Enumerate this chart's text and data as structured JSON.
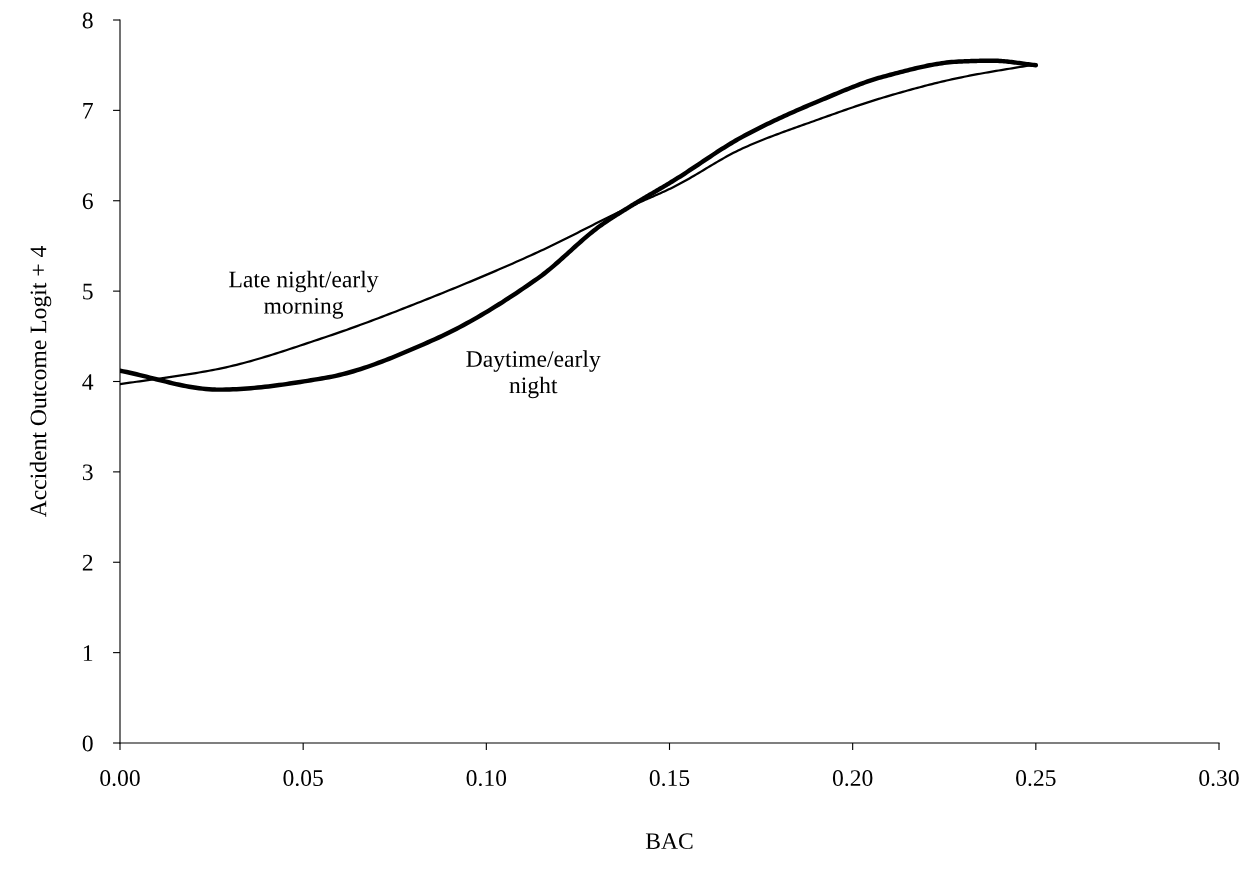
{
  "chart_data": {
    "type": "line",
    "xlabel": "BAC",
    "ylabel": "Accident Outcome Logit + 4",
    "xlim": [
      0,
      0.3
    ],
    "xticks": [
      {
        "value": 0,
        "label": "0.00"
      },
      {
        "value": 0.05,
        "label": "0.05"
      },
      {
        "value": 0.1,
        "label": "0.10"
      },
      {
        "value": 0.15,
        "label": "0.15"
      },
      {
        "value": 0.2,
        "label": "0.20"
      },
      {
        "value": 0.25,
        "label": "0.25"
      },
      {
        "value": 0.3,
        "label": "0.30"
      }
    ],
    "ylim": [
      0,
      8
    ],
    "yticks": [
      0,
      1,
      2,
      3,
      4,
      5,
      6,
      7,
      8
    ],
    "grid": false,
    "legend": false,
    "marker": "none",
    "line_style": "solid",
    "series": [
      {
        "color": "#000000",
        "x": [
          0,
          0.027,
          0.056,
          0.085,
          0.114,
          0.131,
          0.139,
          0.151,
          0.17,
          0.19,
          0.209,
          0.229,
          0.238,
          0.25
        ],
        "values": [
          4.12,
          3.91,
          4.04,
          4.45,
          5.14,
          5.72,
          5.93,
          6.22,
          6.71,
          7.09,
          7.38,
          7.54,
          7.55,
          7.5
        ]
      },
      {
        "color": "#000000",
        "x": [
          0,
          0.027,
          0.056,
          0.085,
          0.114,
          0.139,
          0.151,
          0.17,
          0.19,
          0.209,
          0.229,
          0.25
        ],
        "values": [
          3.97,
          4.14,
          4.49,
          4.93,
          5.43,
          5.93,
          6.15,
          6.58,
          6.89,
          7.15,
          7.36,
          7.51
        ]
      }
    ],
    "annotations": [
      "Late night/early\nmorning",
      "Daytime/early\nnight"
    ]
  }
}
